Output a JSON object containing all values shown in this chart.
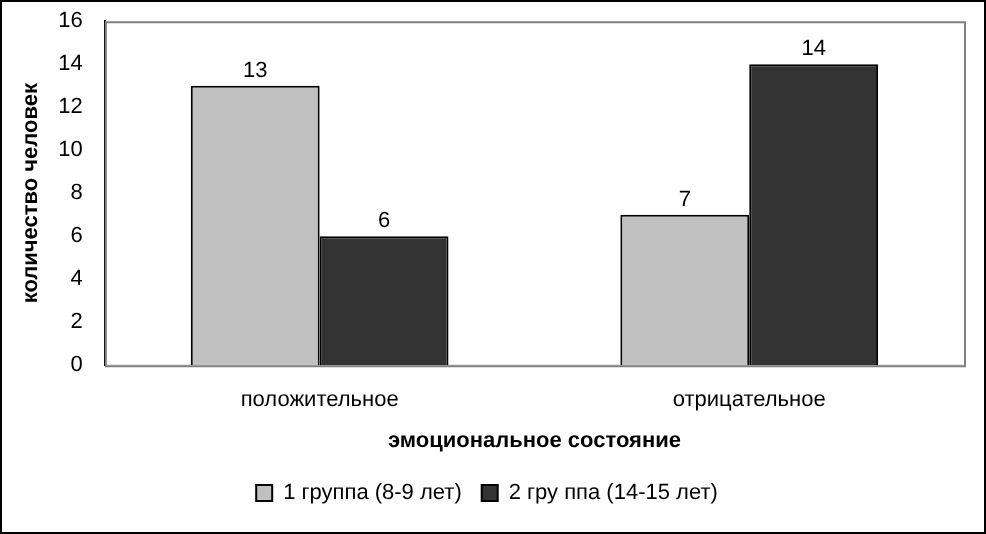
{
  "chart_data": {
    "type": "bar",
    "xlabel": "эмоциональное состояние",
    "ylabel": "количество человек",
    "categories": [
      "положительное",
      "отрицательное"
    ],
    "series": [
      {
        "name": "1 группа (8-9 лет)",
        "color": "#c0c0c0",
        "values": [
          13,
          7
        ]
      },
      {
        "name": "2 гру ппа (14-15 лет)",
        "color": "#333333",
        "values": [
          6,
          14
        ]
      }
    ],
    "ylim": [
      0,
      16
    ],
    "yticks": [
      0,
      2,
      4,
      6,
      8,
      10,
      12,
      14,
      16
    ],
    "grid": false,
    "legend": "bottom",
    "data_labels": true
  }
}
